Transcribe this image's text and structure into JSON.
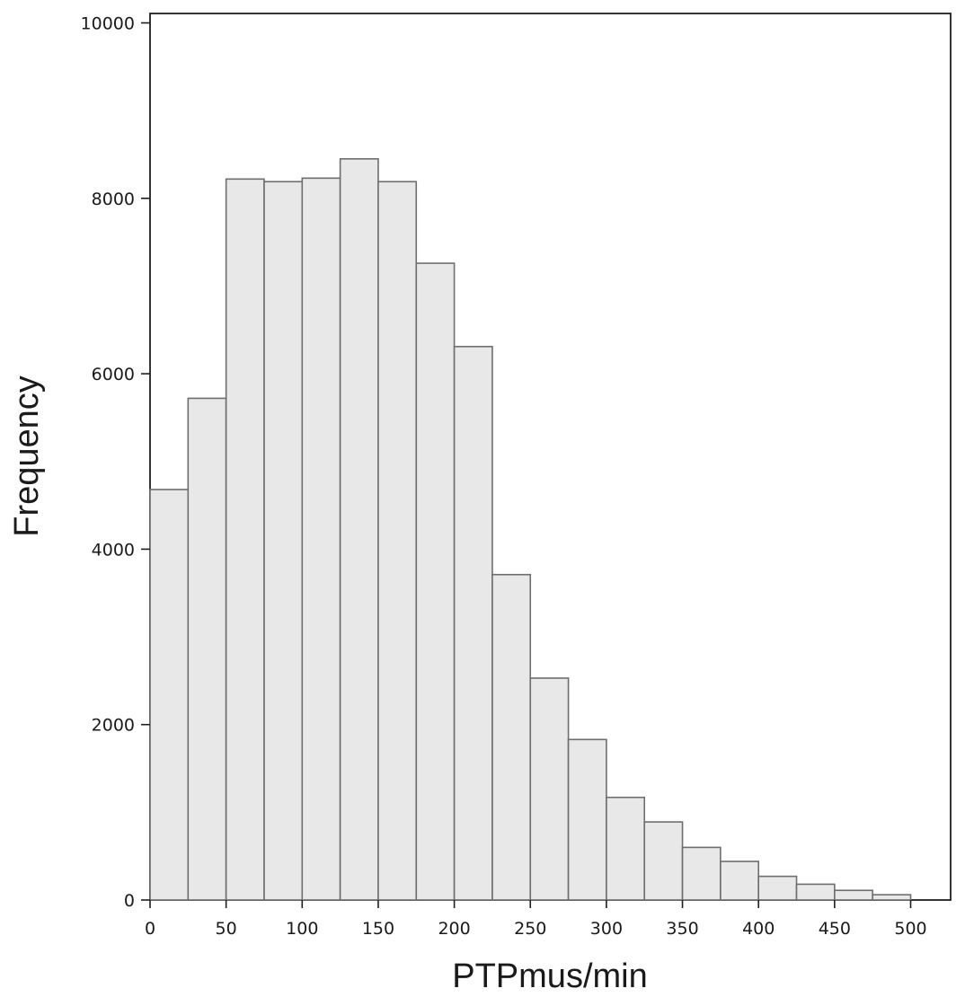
{
  "chart_data": {
    "type": "bar",
    "subtype": "histogram",
    "title": "",
    "xlabel": "PTPmus/min",
    "ylabel": "Frequency",
    "bin_width": 25,
    "bins": [
      {
        "x0": 0,
        "x1": 25,
        "count": 4680
      },
      {
        "x0": 25,
        "x1": 50,
        "count": 5720
      },
      {
        "x0": 50,
        "x1": 75,
        "count": 8220
      },
      {
        "x0": 75,
        "x1": 100,
        "count": 8190
      },
      {
        "x0": 100,
        "x1": 125,
        "count": 8230
      },
      {
        "x0": 125,
        "x1": 150,
        "count": 8450
      },
      {
        "x0": 150,
        "x1": 175,
        "count": 8190
      },
      {
        "x0": 175,
        "x1": 200,
        "count": 7260
      },
      {
        "x0": 200,
        "x1": 225,
        "count": 6310
      },
      {
        "x0": 225,
        "x1": 250,
        "count": 3710
      },
      {
        "x0": 250,
        "x1": 275,
        "count": 2530
      },
      {
        "x0": 275,
        "x1": 300,
        "count": 1830
      },
      {
        "x0": 300,
        "x1": 325,
        "count": 1170
      },
      {
        "x0": 325,
        "x1": 350,
        "count": 890
      },
      {
        "x0": 350,
        "x1": 375,
        "count": 600
      },
      {
        "x0": 375,
        "x1": 400,
        "count": 440
      },
      {
        "x0": 400,
        "x1": 425,
        "count": 270
      },
      {
        "x0": 425,
        "x1": 450,
        "count": 180
      },
      {
        "x0": 450,
        "x1": 475,
        "count": 110
      },
      {
        "x0": 475,
        "x1": 500,
        "count": 60
      }
    ],
    "xticks": [
      "0",
      "50",
      "100",
      "150",
      "200",
      "250",
      "300",
      "350",
      "400",
      "450",
      "500"
    ],
    "yticks": [
      "0",
      "2000",
      "4000",
      "6000",
      "8000",
      "10000"
    ],
    "xlim": [
      0,
      527
    ],
    "ylim": [
      0,
      10000
    ],
    "grid": false,
    "legend": "none",
    "colors": {
      "bar_fill": "#e8e8e8",
      "bar_stroke": "#6e6e6e",
      "frame": "#1f1f1f"
    }
  }
}
